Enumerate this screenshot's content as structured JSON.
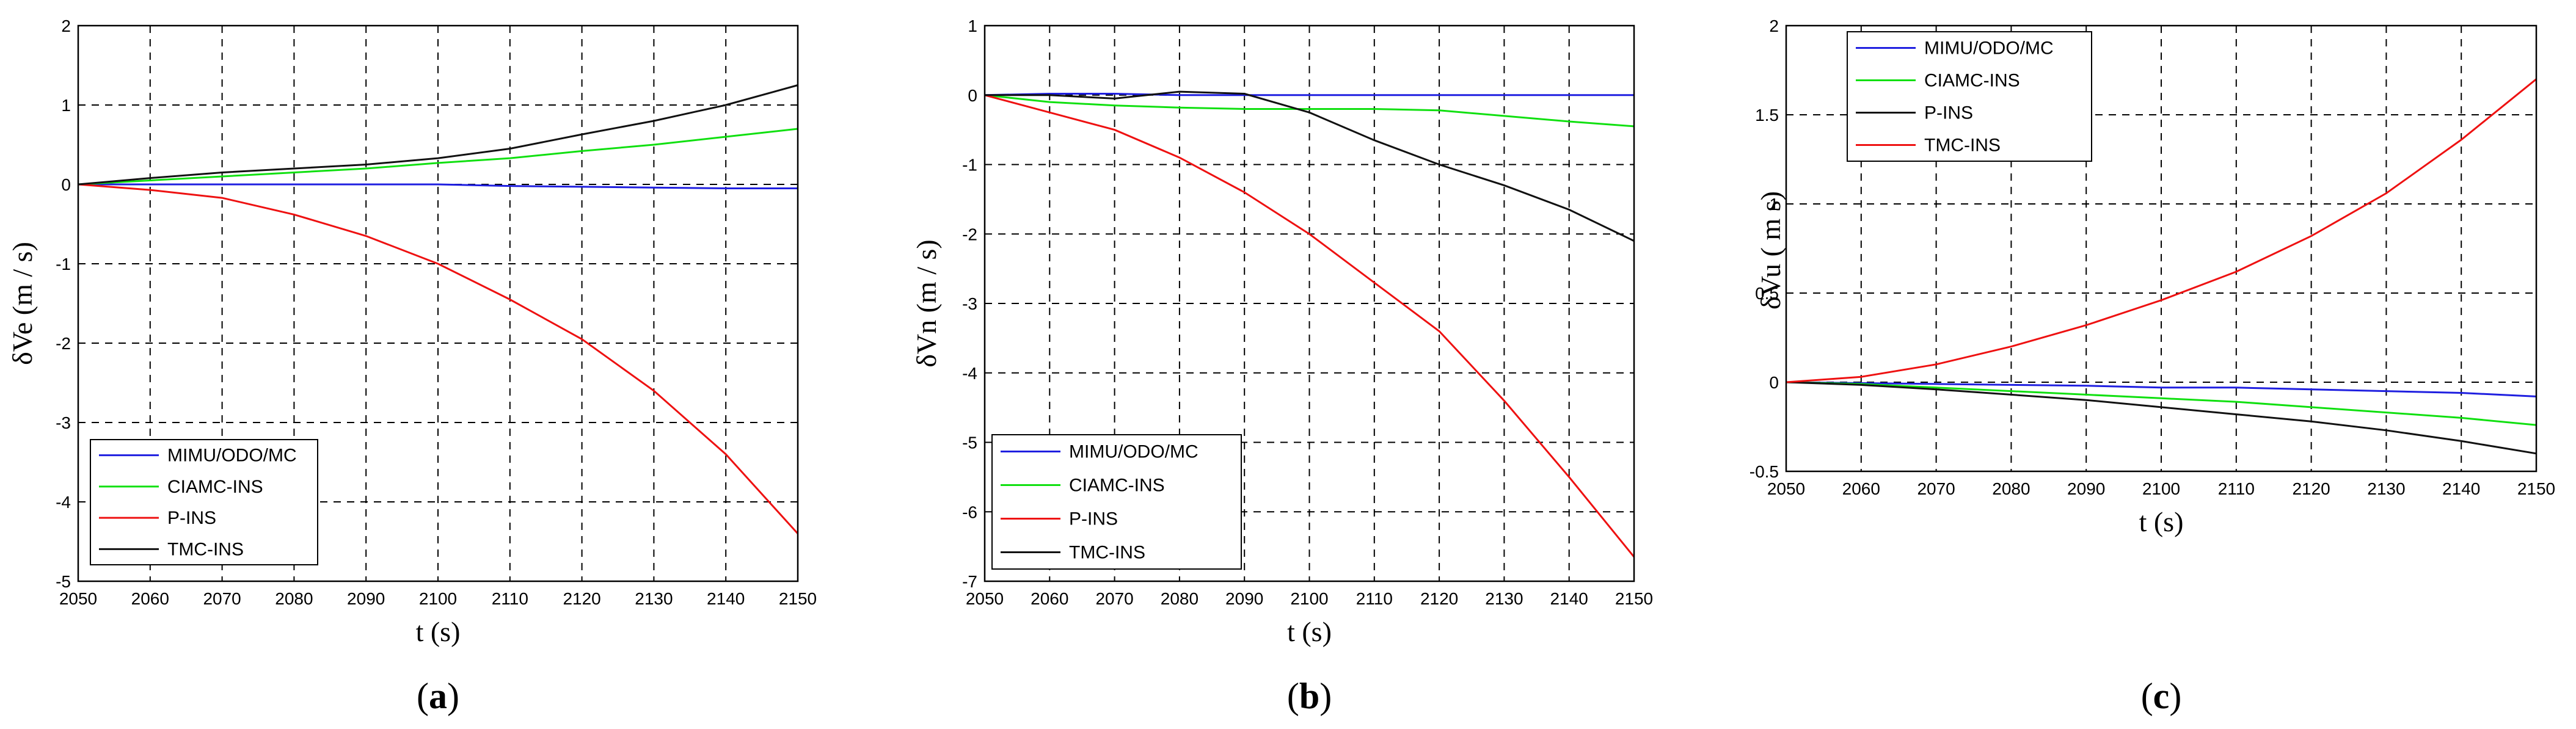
{
  "colors": {
    "blue": "#1f1fe0",
    "green": "#10e010",
    "red": "#ee1111",
    "black": "#111111"
  },
  "chart_data": [
    {
      "type": "line",
      "panel_label": "a",
      "xlabel": "t (s)",
      "ylabel": "δVe (m / s)",
      "xlim": [
        2050,
        2150
      ],
      "ylim": [
        -5,
        2
      ],
      "xticks": [
        "2050",
        "2060",
        "2070",
        "2080",
        "2090",
        "2100",
        "2110",
        "2120",
        "2130",
        "2140",
        "2150"
      ],
      "yticks": [
        "-5",
        "-4",
        "-3",
        "-2",
        "-1",
        "0",
        "1",
        "2"
      ],
      "legend_position": "bottom-left",
      "x": [
        2050,
        2060,
        2070,
        2080,
        2090,
        2100,
        2110,
        2120,
        2130,
        2140,
        2150
      ],
      "series": [
        {
          "name": "MIMU/ODO/MC",
          "color": "#1f1fe0",
          "values": [
            0,
            0,
            0,
            0,
            0,
            0,
            -0.02,
            -0.03,
            -0.04,
            -0.05,
            -0.05
          ]
        },
        {
          "name": "CIAMC-INS",
          "color": "#10e010",
          "values": [
            0,
            0.05,
            0.1,
            0.15,
            0.2,
            0.27,
            0.33,
            0.42,
            0.5,
            0.6,
            0.7
          ]
        },
        {
          "name": "P-INS",
          "color": "#ee1111",
          "values": [
            0,
            -0.07,
            -0.17,
            -0.38,
            -0.65,
            -1.0,
            -1.45,
            -1.95,
            -2.6,
            -3.4,
            -4.4
          ]
        },
        {
          "name": "TMC-INS",
          "color": "#111111",
          "values": [
            0,
            0.08,
            0.15,
            0.2,
            0.25,
            0.33,
            0.45,
            0.63,
            0.8,
            1.0,
            1.25
          ]
        }
      ]
    },
    {
      "type": "line",
      "panel_label": "b",
      "xlabel": "t (s)",
      "ylabel": "δVn (m / s)",
      "xlim": [
        2050,
        2150
      ],
      "ylim": [
        -7,
        1
      ],
      "xticks": [
        "2050",
        "2060",
        "2070",
        "2080",
        "2090",
        "2100",
        "2110",
        "2120",
        "2130",
        "2140",
        "2150"
      ],
      "yticks": [
        "-7",
        "-6",
        "-5",
        "-4",
        "-3",
        "-2",
        "-1",
        "0",
        "1"
      ],
      "legend_position": "bottom-left",
      "x": [
        2050,
        2060,
        2070,
        2080,
        2090,
        2100,
        2110,
        2120,
        2130,
        2140,
        2150
      ],
      "series": [
        {
          "name": "MIMU/ODO/MC",
          "color": "#1f1fe0",
          "values": [
            0,
            0.02,
            0.02,
            0,
            0,
            0,
            0,
            0,
            0,
            0,
            0
          ]
        },
        {
          "name": "CIAMC-INS",
          "color": "#10e010",
          "values": [
            0,
            -0.1,
            -0.15,
            -0.18,
            -0.2,
            -0.2,
            -0.2,
            -0.22,
            -0.3,
            -0.38,
            -0.45
          ]
        },
        {
          "name": "P-INS",
          "color": "#ee1111",
          "values": [
            0,
            -0.25,
            -0.5,
            -0.9,
            -1.4,
            -2.0,
            -2.7,
            -3.4,
            -4.4,
            -5.5,
            -6.65
          ]
        },
        {
          "name": "TMC-INS",
          "color": "#111111",
          "values": [
            0,
            0,
            -0.05,
            0.05,
            0.02,
            -0.25,
            -0.65,
            -1.0,
            -1.3,
            -1.65,
            -2.1
          ]
        }
      ]
    },
    {
      "type": "line",
      "panel_label": "c",
      "xlabel": "t (s)",
      "ylabel": "δVu ( m s)",
      "xlim": [
        2050,
        2150
      ],
      "ylim": [
        -0.5,
        2
      ],
      "xticks": [
        "2050",
        "2060",
        "2070",
        "2080",
        "2090",
        "2100",
        "2110",
        "2120",
        "2130",
        "2140",
        "2150"
      ],
      "yticks": [
        "-0.5",
        "0",
        "0.5",
        "1",
        "1.5",
        "2"
      ],
      "legend_position": "top-left",
      "x": [
        2050,
        2060,
        2070,
        2080,
        2090,
        2100,
        2110,
        2120,
        2130,
        2140,
        2150
      ],
      "series": [
        {
          "name": "MIMU/ODO/MC",
          "color": "#1f1fe0",
          "values": [
            0,
            -0.005,
            -0.01,
            -0.015,
            -0.02,
            -0.03,
            -0.03,
            -0.04,
            -0.05,
            -0.06,
            -0.08
          ]
        },
        {
          "name": "CIAMC-INS",
          "color": "#10e010",
          "values": [
            0,
            -0.01,
            -0.03,
            -0.05,
            -0.07,
            -0.09,
            -0.11,
            -0.14,
            -0.17,
            -0.2,
            -0.24
          ]
        },
        {
          "name": "P-INS",
          "color": "#111111",
          "values": [
            0,
            -0.015,
            -0.04,
            -0.07,
            -0.1,
            -0.14,
            -0.18,
            -0.22,
            -0.27,
            -0.33,
            -0.4
          ]
        },
        {
          "name": "TMC-INS",
          "color": "#ee1111",
          "values": [
            0,
            0.03,
            0.1,
            0.2,
            0.32,
            0.46,
            0.62,
            0.82,
            1.06,
            1.36,
            1.7
          ]
        }
      ]
    }
  ]
}
